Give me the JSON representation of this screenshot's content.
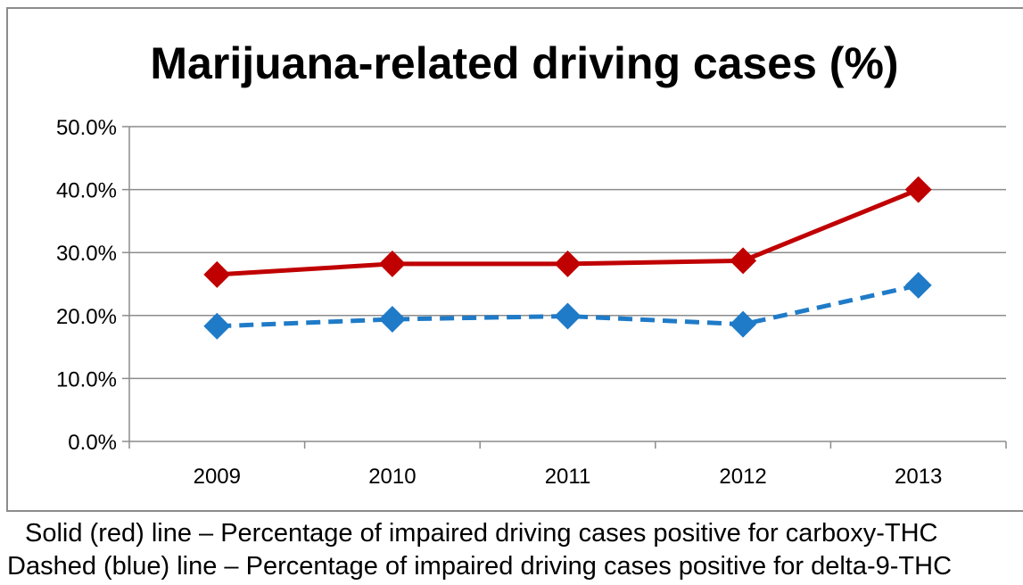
{
  "chart_data": {
    "type": "line",
    "title": "Marijuana-related driving cases (%)",
    "categories": [
      "2009",
      "2010",
      "2011",
      "2012",
      "2013"
    ],
    "series": [
      {
        "values": [
          26.5,
          28.2,
          28.2,
          28.7,
          40.0
        ],
        "color": "#c00000",
        "line_style": "solid",
        "marker": "diamond"
      },
      {
        "values": [
          18.3,
          19.4,
          19.9,
          18.6,
          24.8
        ],
        "color": "#1f7bc8",
        "line_style": "dashed",
        "marker": "diamond"
      }
    ],
    "y_ticks": [
      "0.0%",
      "10.0%",
      "20.0%",
      "30.0%",
      "40.0%",
      "50.0%"
    ],
    "ylim": [
      0,
      50
    ],
    "grid": true,
    "legend": "none"
  },
  "captions": {
    "line1": "Solid (red) line – Percentage of impaired driving cases positive for carboxy-THC",
    "line2": "Dashed (blue) line – Percentage of impaired driving cases positive for delta-9-THC"
  }
}
